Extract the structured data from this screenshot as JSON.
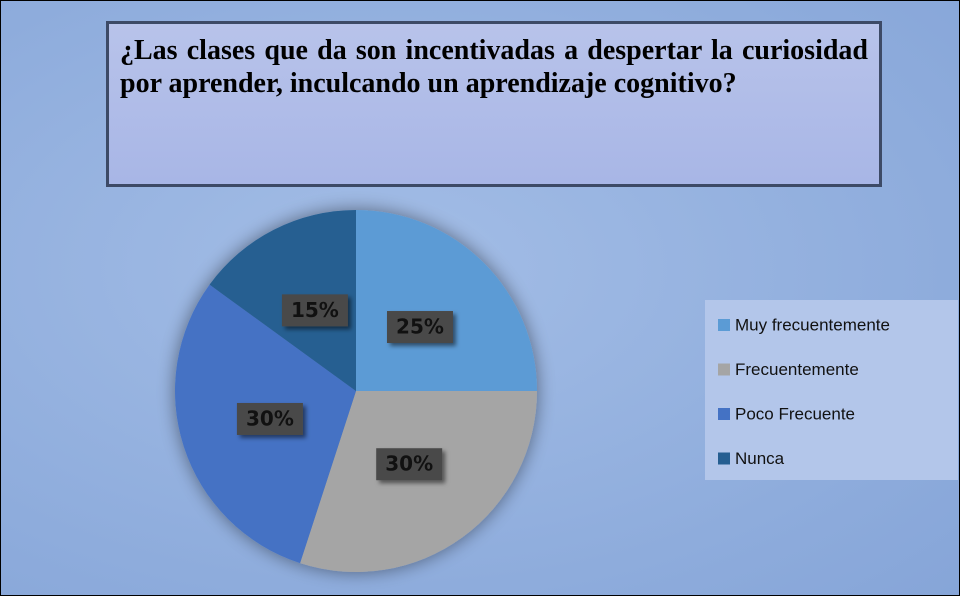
{
  "chart_data": {
    "type": "pie",
    "title": "¿Las clases que da son incentivadas a despertar la curiosidad por aprender, inculcando un aprendizaje cognitivo?",
    "categories": [
      "Muy frecuentemente",
      "Frecuentemente",
      "Poco Frecuente",
      "Nunca"
    ],
    "values": [
      25,
      30,
      30,
      15
    ],
    "value_labels": [
      "25%",
      "30%",
      "30%",
      "15%"
    ],
    "colors": [
      "#5b9bd5",
      "#a5a5a5",
      "#4472c4",
      "#255e91"
    ],
    "legend": "right"
  }
}
